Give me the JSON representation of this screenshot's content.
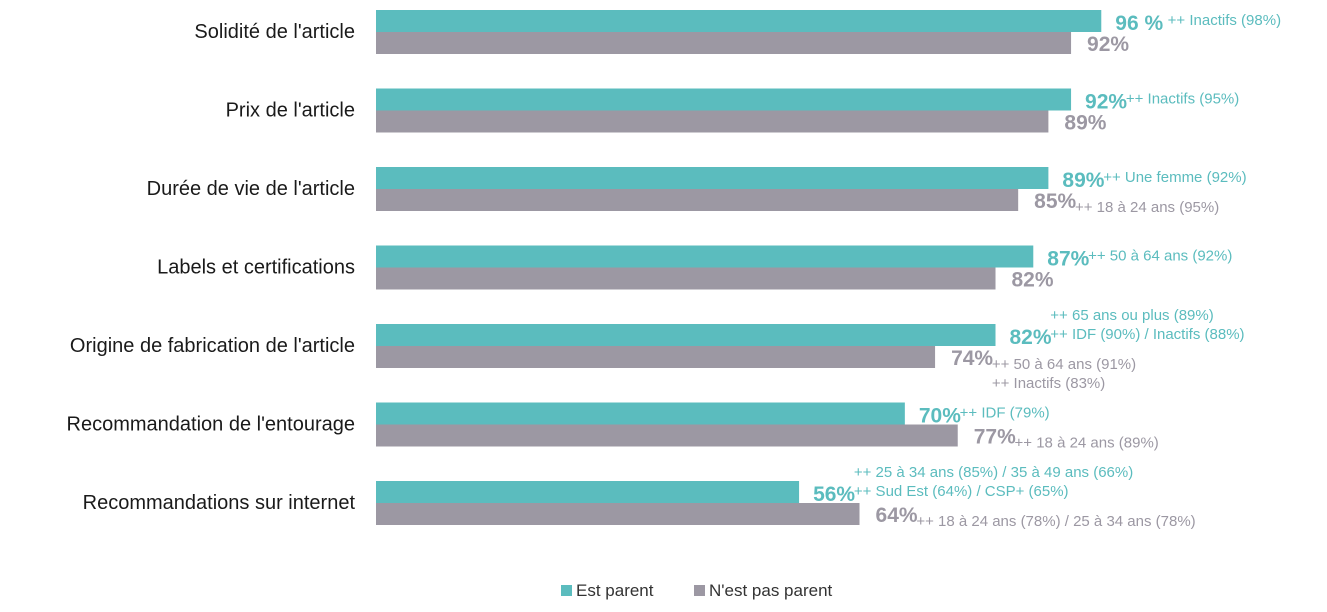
{
  "colors": {
    "series_a": "#5bbcbe",
    "series_b": "#9c98a3",
    "note_a": "#5bbcbe",
    "note_b": "#9c98a3"
  },
  "chart_data": {
    "type": "bar",
    "orientation": "horizontal",
    "title": "",
    "xlabel": "",
    "ylabel": "",
    "xlim": [
      0,
      100
    ],
    "grid": false,
    "legend_position": "bottom-center",
    "categories": [
      "Solidité de l'article",
      "Prix de l'article",
      "Durée de vie de l'article",
      "Labels et certifications",
      "Origine de fabrication de l'article",
      "Recommandation de l'entourage",
      "Recommandations sur internet"
    ],
    "series": [
      {
        "name": "Est parent",
        "values": [
          96,
          92,
          89,
          87,
          82,
          70,
          56
        ],
        "data_labels": [
          "96 %",
          "92%",
          "89%",
          "87%",
          "82%",
          "70%",
          "56%"
        ]
      },
      {
        "name": "N'est pas parent",
        "values": [
          92,
          89,
          85,
          82,
          74,
          77,
          64
        ],
        "data_labels": [
          "92%",
          "89%",
          "85%",
          "82%",
          "74%",
          "77%",
          "64%"
        ]
      }
    ],
    "annotations": [
      {
        "category": 0,
        "series": 0,
        "lines": [
          "++ Inactifs (98%)"
        ]
      },
      {
        "category": 1,
        "series": 0,
        "lines": [
          "++ Inactifs (95%)"
        ]
      },
      {
        "category": 2,
        "series": 0,
        "lines": [
          "++ Une femme (92%)"
        ]
      },
      {
        "category": 2,
        "series": 1,
        "lines": [
          "++ 18 à 24 ans (95%)"
        ]
      },
      {
        "category": 3,
        "series": 0,
        "lines": [
          "++ 50 à 64 ans (92%)"
        ]
      },
      {
        "category": 4,
        "series": 0,
        "lines": [
          "++ 65 ans ou plus (89%)",
          "++ IDF (90%) / Inactifs (88%)"
        ]
      },
      {
        "category": 4,
        "series": 1,
        "lines": [
          "++ 50 à 64 ans (91%)",
          "++ Inactifs (83%)"
        ]
      },
      {
        "category": 5,
        "series": 0,
        "lines": [
          "++ IDF (79%)"
        ]
      },
      {
        "category": 5,
        "series": 1,
        "lines": [
          "++ 18 à 24 ans (89%)"
        ]
      },
      {
        "category": 6,
        "series": 0,
        "lines": [
          "++ 25 à 34 ans (85%) / 35 à 49 ans (66%)",
          "++ Sud Est (64%) / CSP+ (65%)"
        ]
      },
      {
        "category": 6,
        "series": 1,
        "lines": [
          "++ 18 à 24 ans (78%) / 25 à 34 ans (78%)"
        ]
      }
    ]
  }
}
